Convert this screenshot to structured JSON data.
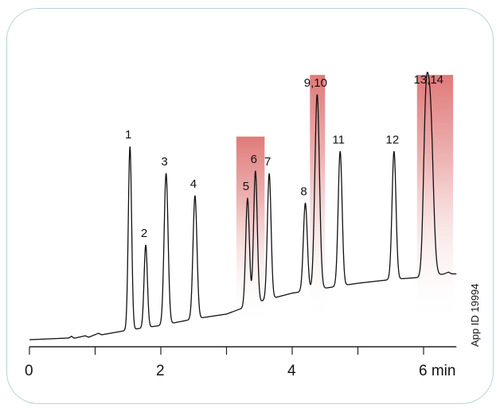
{
  "app_id_label": "App ID 19994",
  "colors": {
    "highlight": "#e07a7a",
    "trace": "#111111",
    "axis": "#222222",
    "frame": "#b9d2d8"
  },
  "chart_data": {
    "type": "line",
    "title": "",
    "xlabel": "",
    "ylabel": "",
    "xlim": [
      0,
      6.5
    ],
    "ylim": [
      0,
      100
    ],
    "grid": false,
    "x_ticks": [
      {
        "value": 0,
        "label": "0"
      },
      {
        "value": 1,
        "label": ""
      },
      {
        "value": 2,
        "label": "2"
      },
      {
        "value": 3,
        "label": ""
      },
      {
        "value": 4,
        "label": "4"
      },
      {
        "value": 5,
        "label": ""
      },
      {
        "value": 6,
        "label": "6 min"
      }
    ],
    "baseline": [
      [
        0.0,
        0.6
      ],
      [
        0.6,
        1.3
      ],
      [
        0.64,
        2.0
      ],
      [
        0.68,
        1.2
      ],
      [
        0.85,
        2.2
      ],
      [
        0.9,
        1.6
      ],
      [
        1.05,
        3.2
      ],
      [
        1.1,
        2.6
      ],
      [
        1.48,
        4.4
      ],
      [
        2.0,
        6.4
      ],
      [
        2.5,
        9.0
      ],
      [
        3.0,
        11.0
      ],
      [
        3.3,
        14.0
      ],
      [
        3.5,
        16.0
      ],
      [
        4.0,
        19.5
      ],
      [
        4.5,
        21.5
      ],
      [
        5.0,
        23.5
      ],
      [
        5.5,
        25.0
      ],
      [
        6.0,
        26.0
      ],
      [
        6.3,
        27.2
      ],
      [
        6.38,
        28.0
      ],
      [
        6.43,
        27.3
      ],
      [
        6.5,
        27.3
      ]
    ],
    "peaks": [
      {
        "label": "1",
        "rt": 1.53,
        "height": 79,
        "width": 0.025
      },
      {
        "label": "2",
        "rt": 1.77,
        "height": 39,
        "width": 0.025
      },
      {
        "label": "3",
        "rt": 2.08,
        "height": 68,
        "width": 0.03
      },
      {
        "label": "4",
        "rt": 2.52,
        "height": 59,
        "width": 0.03
      },
      {
        "label": "5",
        "rt": 3.32,
        "height": 58,
        "width": 0.028
      },
      {
        "label": "6",
        "rt": 3.44,
        "height": 69,
        "width": 0.028
      },
      {
        "label": "7",
        "rt": 3.65,
        "height": 68,
        "width": 0.028
      },
      {
        "label": "8",
        "rt": 4.2,
        "height": 56,
        "width": 0.03
      },
      {
        "label": "9,10",
        "rt": 4.38,
        "height": 100,
        "width": 0.035
      },
      {
        "label": "11",
        "rt": 4.73,
        "height": 77,
        "width": 0.03
      },
      {
        "label": "12",
        "rt": 5.55,
        "height": 77,
        "width": 0.03
      },
      {
        "label": "13,14",
        "rt": 6.1,
        "height": 94,
        "width": 0.045
      }
    ],
    "shoulder": {
      "rt": 6.03,
      "height": 80,
      "width": 0.035
    },
    "highlight_regions": [
      {
        "from": 3.15,
        "to": 3.58,
        "top": 83
      },
      {
        "from": 4.27,
        "to": 4.5,
        "top": 108
      },
      {
        "from": 5.9,
        "to": 6.45,
        "top": 108
      }
    ]
  }
}
